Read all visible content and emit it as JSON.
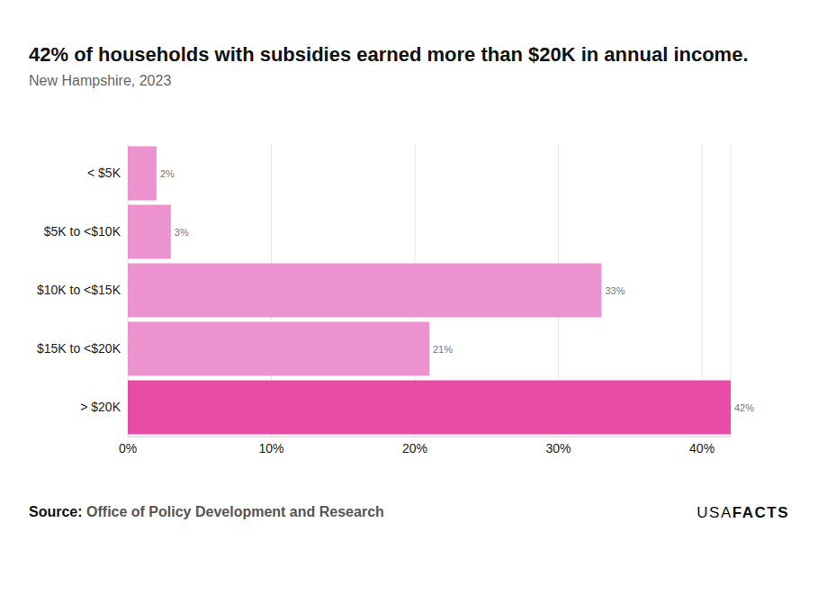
{
  "chart_data": {
    "type": "bar",
    "orientation": "horizontal",
    "title": "42% of households with subsidies earned more than $20K in annual income.",
    "subtitle": "New Hampshire, 2023",
    "source_label": "Source:",
    "source": "Office of Policy Development and Research",
    "logo": [
      "USA",
      "FACTS"
    ],
    "categories": [
      "< $5K",
      "$5K to <$10K",
      "$10K to <$15K",
      "$15K to <$20K",
      "> $20K"
    ],
    "values": [
      2,
      3,
      33,
      21,
      42
    ],
    "value_labels": [
      "2%",
      "3%",
      "33%",
      "21%",
      "42%"
    ],
    "data_labels": true,
    "colors": [
      "#ec93cf",
      "#ec93cf",
      "#ec93cf",
      "#ec93cf",
      "#e84ba5"
    ],
    "xlim": [
      0,
      42
    ],
    "xticks": [
      {
        "value": 0,
        "label": "0%"
      },
      {
        "value": 10,
        "label": "10%"
      },
      {
        "value": 20,
        "label": "20%"
      },
      {
        "value": 30,
        "label": "30%"
      },
      {
        "value": 40,
        "label": "40%"
      }
    ],
    "grid": true
  }
}
